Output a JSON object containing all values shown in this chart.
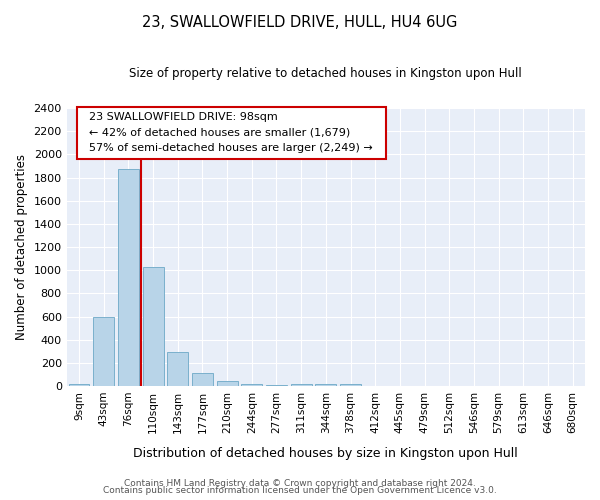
{
  "title1": "23, SWALLOWFIELD DRIVE, HULL, HU4 6UG",
  "title2": "Size of property relative to detached houses in Kingston upon Hull",
  "xlabel": "Distribution of detached houses by size in Kingston upon Hull",
  "ylabel": "Number of detached properties",
  "footer1": "Contains HM Land Registry data © Crown copyright and database right 2024.",
  "footer2": "Contains public sector information licensed under the Open Government Licence v3.0.",
  "annotation_title": "23 SWALLOWFIELD DRIVE: 98sqm",
  "annotation_line2": "← 42% of detached houses are smaller (1,679)",
  "annotation_line3": "57% of semi-detached houses are larger (2,249) →",
  "bar_labels": [
    "9sqm",
    "43sqm",
    "76sqm",
    "110sqm",
    "143sqm",
    "177sqm",
    "210sqm",
    "244sqm",
    "277sqm",
    "311sqm",
    "344sqm",
    "378sqm",
    "412sqm",
    "445sqm",
    "479sqm",
    "512sqm",
    "546sqm",
    "579sqm",
    "613sqm",
    "646sqm",
    "680sqm"
  ],
  "bar_values": [
    15,
    600,
    1870,
    1030,
    295,
    115,
    48,
    20,
    12,
    20,
    15,
    20,
    0,
    0,
    0,
    0,
    0,
    0,
    0,
    0,
    0
  ],
  "bar_color": "#b8d4e8",
  "bar_edge_color": "#7ab0cc",
  "vline_x": 2.5,
  "vline_color": "#cc0000",
  "ylim": [
    0,
    2400
  ],
  "yticks": [
    0,
    200,
    400,
    600,
    800,
    1000,
    1200,
    1400,
    1600,
    1800,
    2000,
    2200,
    2400
  ],
  "fig_bg_color": "#ffffff",
  "plot_bg_color": "#e8eef8",
  "grid_color": "#ffffff",
  "annotation_text_color": "#000000",
  "annotation_box_color": "#ffffff",
  "annotation_box_edge": "#cc0000"
}
